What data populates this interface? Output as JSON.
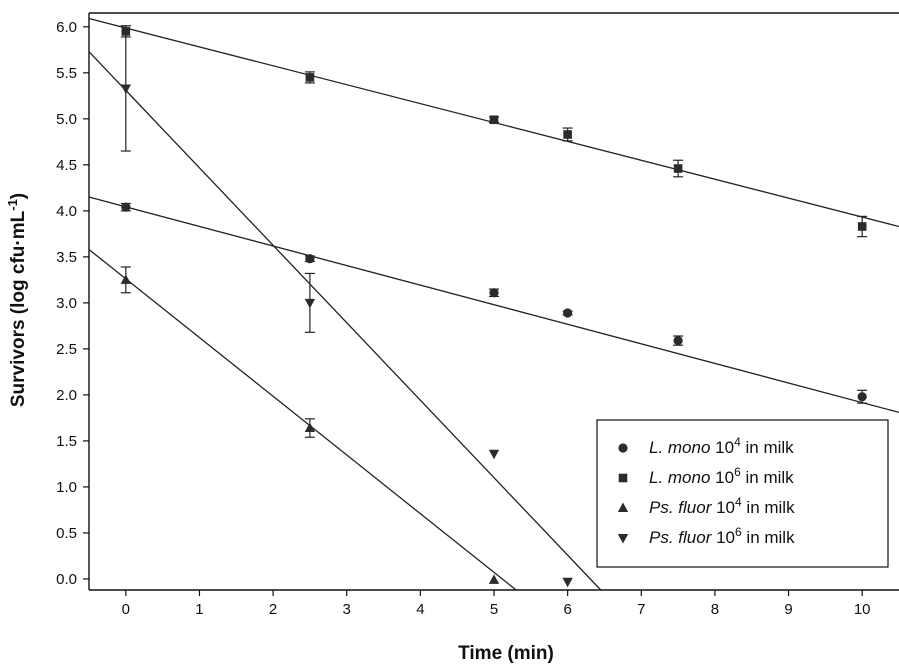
{
  "chart_data": {
    "type": "scatter",
    "title": "",
    "xlabel": "Time (min)",
    "ylabel_main": "Survivors (log cfu·mL",
    "ylabel_sup": "-1",
    "ylabel_close": ")",
    "xlim": [
      -0.5,
      10.5
    ],
    "ylim": [
      -0.12,
      6.15
    ],
    "x_ticks": [
      0,
      1,
      2,
      3,
      4,
      5,
      6,
      7,
      8,
      9,
      10
    ],
    "x_tick_labels": [
      "0",
      "1",
      "2",
      "3",
      "4",
      "5",
      "6",
      "7",
      "8",
      "9",
      "10"
    ],
    "y_ticks": [
      0,
      0.5,
      1,
      1.5,
      2,
      2.5,
      3,
      3.5,
      4,
      4.5,
      5,
      5.5,
      6
    ],
    "y_tick_labels": [
      "0.0",
      "0.5",
      "1.0",
      "1.5",
      "2.0",
      "2.5",
      "3.0",
      "3.5",
      "4.0",
      "4.5",
      "5.0",
      "5.5",
      "6.0"
    ],
    "legend_position": "bottom-right",
    "grid": false,
    "series": [
      {
        "key": "lmono4",
        "marker": "circle",
        "legend": {
          "italic": "L. mono",
          "base": " 10",
          "sup": "4",
          "tail": " in milk"
        },
        "x": [
          0,
          2.5,
          5,
          6,
          7.5,
          10
        ],
        "y": [
          4.04,
          3.48,
          3.11,
          2.89,
          2.59,
          1.98
        ],
        "err": [
          0.04,
          0.03,
          0.04,
          0.02,
          0.05,
          0.07
        ],
        "fit": [
          [
            -0.5,
            4.15
          ],
          [
            10.5,
            1.81
          ]
        ]
      },
      {
        "key": "lmono6",
        "marker": "square",
        "legend": {
          "italic": "L. mono",
          "base": " 10",
          "sup": "6",
          "tail": " in milk"
        },
        "x": [
          0,
          2.5,
          5,
          6,
          7.5,
          10
        ],
        "y": [
          5.95,
          5.45,
          4.99,
          4.83,
          4.46,
          3.83
        ],
        "err": [
          0.06,
          0.06,
          0.03,
          0.07,
          0.09,
          0.11
        ],
        "fit": [
          [
            -0.5,
            6.09
          ],
          [
            10.5,
            3.83
          ]
        ]
      },
      {
        "key": "psfluor4",
        "marker": "triangle-up",
        "legend": {
          "italic": "Ps. fluor",
          "base": " 10",
          "sup": "4",
          "tail": " in milk"
        },
        "x": [
          0,
          2.5,
          5
        ],
        "y": [
          3.25,
          1.64,
          -0.01
        ],
        "err": [
          0.14,
          0.1,
          0
        ],
        "fit": [
          [
            -0.5,
            3.58
          ],
          [
            5.3,
            -0.12
          ]
        ]
      },
      {
        "key": "psfluor6",
        "marker": "triangle-down",
        "legend": {
          "italic": "Ps. fluor",
          "base": " 10",
          "sup": "6",
          "tail": " in milk"
        },
        "x": [
          0,
          2.5,
          5,
          6
        ],
        "y": [
          5.33,
          3.0,
          1.36,
          -0.03
        ],
        "err": [
          0.68,
          0.32,
          0,
          0
        ],
        "fit": [
          [
            -0.5,
            5.73
          ],
          [
            6.45,
            -0.12
          ]
        ]
      }
    ]
  }
}
